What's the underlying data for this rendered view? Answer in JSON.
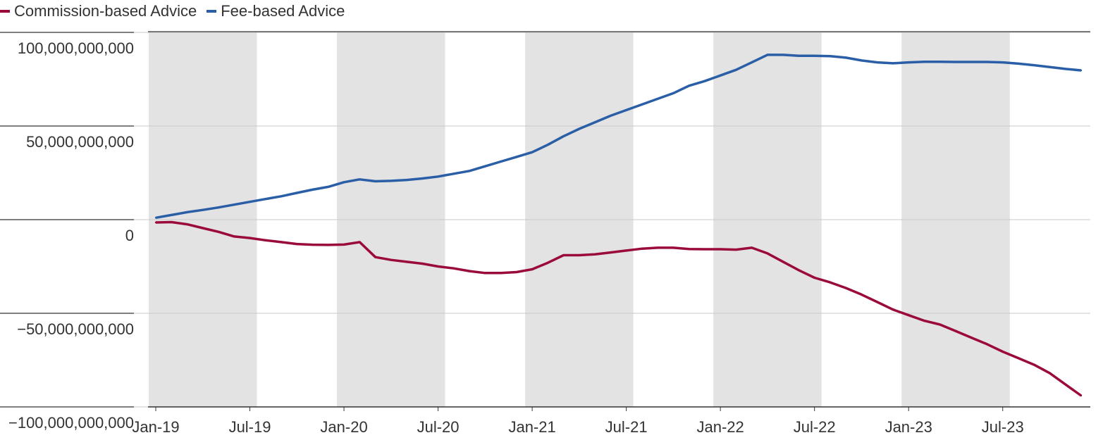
{
  "legend": {
    "commission_label": "Commission-based Advice",
    "fee_label": "Fee-based Advice"
  },
  "colors": {
    "commission": "#9b0a3c",
    "fee": "#2a5ea6",
    "shade": "#e3e3e3",
    "grid": "#c8c8c8"
  },
  "chart_data": {
    "type": "line",
    "title": "",
    "xlabel": "",
    "ylabel": "",
    "ylim": [
      -100000000000,
      100000000000
    ],
    "y_ticks": [
      {
        "value": 100000000000,
        "label": "100,000,000,000"
      },
      {
        "value": 50000000000,
        "label": "50,000,000,000"
      },
      {
        "value": 0,
        "label": "0"
      },
      {
        "value": -50000000000,
        "label": "−50,000,000,000"
      },
      {
        "value": -100000000000,
        "label": "−100,000,000,000"
      }
    ],
    "x_ticks": [
      "Jan-19",
      "Jul-19",
      "Jan-20",
      "Jul-20",
      "Jan-21",
      "Jul-21",
      "Jan-22",
      "Jul-22",
      "Jan-23",
      "Jul-23"
    ],
    "x": [
      "Jan-19",
      "Feb-19",
      "Mar-19",
      "Apr-19",
      "May-19",
      "Jun-19",
      "Jul-19",
      "Aug-19",
      "Sep-19",
      "Oct-19",
      "Nov-19",
      "Dec-19",
      "Jan-20",
      "Feb-20",
      "Mar-20",
      "Apr-20",
      "May-20",
      "Jun-20",
      "Jul-20",
      "Aug-20",
      "Sep-20",
      "Oct-20",
      "Nov-20",
      "Dec-20",
      "Jan-21",
      "Feb-21",
      "Mar-21",
      "Apr-21",
      "May-21",
      "Jun-21",
      "Jul-21",
      "Aug-21",
      "Sep-21",
      "Oct-21",
      "Nov-21",
      "Dec-21",
      "Jan-22",
      "Feb-22",
      "Mar-22",
      "Apr-22",
      "May-22",
      "Jun-22",
      "Jul-22",
      "Aug-22",
      "Sep-22",
      "Oct-22",
      "Nov-22",
      "Dec-22",
      "Jan-23",
      "Feb-23",
      "Mar-23",
      "Apr-23",
      "May-23",
      "Jun-23",
      "Jul-23",
      "Aug-23",
      "Sep-23",
      "Oct-23",
      "Nov-23",
      "Dec-23"
    ],
    "shaded_periods": [
      [
        "Jan-19",
        "Jul-19"
      ],
      [
        "Jan-20",
        "Jul-20"
      ],
      [
        "Jan-21",
        "Jul-21"
      ],
      [
        "Jan-22",
        "Jul-22"
      ],
      [
        "Jan-23",
        "Jul-23"
      ]
    ],
    "grid": true,
    "legend_position": "top-left",
    "series": [
      {
        "name": "Commission-based Advice",
        "values": [
          -1500000000.0,
          -1300000000.0,
          -2500000000.0,
          -4500000000.0,
          -6500000000.0,
          -9000000000.0,
          -9800000000.0,
          -11000000000.0,
          -12000000000.0,
          -13000000000.0,
          -13400000000.0,
          -13500000000.0,
          -13300000000.0,
          -12000000000.0,
          -20000000000.0,
          -21500000000.0,
          -22500000000.0,
          -23500000000.0,
          -25000000000.0,
          -26000000000.0,
          -27500000000.0,
          -28500000000.0,
          -28500000000.0,
          -28000000000.0,
          -26500000000.0,
          -23000000000.0,
          -19000000000.0,
          -19000000000.0,
          -18500000000.0,
          -17500000000.0,
          -16500000000.0,
          -15500000000.0,
          -15000000000.0,
          -15000000000.0,
          -15700000000.0,
          -15800000000.0,
          -15800000000.0,
          -16000000000.0,
          -15000000000.0,
          -18000000000.0,
          -22500000000.0,
          -27000000000.0,
          -31000000000.0,
          -33500000000.0,
          -36500000000.0,
          -40000000000.0,
          -44000000000.0,
          -48000000000.0,
          -51000000000.0,
          -54000000000.0,
          -56000000000.0,
          -59500000000.0,
          -63000000000.0,
          -66500000000.0,
          -70500000000.0,
          -74000000000.0,
          -77500000000.0,
          -82000000000.0,
          -88000000000.0,
          -94000000000.0
        ]
      },
      {
        "name": "Fee-based Advice",
        "values": [
          1000000000.0,
          2500000000.0,
          4000000000.0,
          5200000000.0,
          6500000000.0,
          8000000000.0,
          9500000000.0,
          11000000000.0,
          12500000000.0,
          14300000000.0,
          16000000000.0,
          17500000000.0,
          20000000000.0,
          21500000000.0,
          20500000000.0,
          20700000000.0,
          21200000000.0,
          22000000000.0,
          23000000000.0,
          24500000000.0,
          26000000000.0,
          28500000000.0,
          31000000000.0,
          33500000000.0,
          36000000000.0,
          40000000000.0,
          44500000000.0,
          48500000000.0,
          52000000000.0,
          55500000000.0,
          58500000000.0,
          61500000000.0,
          64500000000.0,
          67500000000.0,
          71500000000.0,
          74000000000.0,
          77000000000.0,
          80000000000.0,
          84000000000.0,
          88000000000.0,
          88000000000.0,
          87500000000.0,
          87500000000.0,
          87300000000.0,
          86500000000.0,
          85000000000.0,
          84000000000.0,
          83500000000.0,
          84000000000.0,
          84300000000.0,
          84300000000.0,
          84200000000.0,
          84200000000.0,
          84200000000.0,
          84000000000.0,
          83300000000.0,
          82500000000.0,
          81500000000.0,
          80500000000.0,
          79700000000.0
        ]
      }
    ]
  }
}
